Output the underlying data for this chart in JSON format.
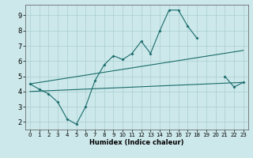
{
  "title": "",
  "xlabel": "Humidex (Indice chaleur)",
  "bg_color": "#cce8ea",
  "grid_color": "#aacdd0",
  "line_color": "#1a6b6b",
  "xlim": [
    -0.5,
    23.5
  ],
  "ylim": [
    1.5,
    9.7
  ],
  "xticks": [
    0,
    1,
    2,
    3,
    4,
    5,
    6,
    7,
    8,
    9,
    10,
    11,
    12,
    13,
    14,
    15,
    16,
    17,
    18,
    19,
    20,
    21,
    22,
    23
  ],
  "yticks": [
    2,
    3,
    4,
    5,
    6,
    7,
    8,
    9
  ],
  "series_spiky": {
    "x": [
      0,
      1,
      2,
      3,
      4,
      5,
      6,
      7,
      8,
      9,
      10,
      11,
      12,
      13,
      14,
      15,
      16,
      17,
      18,
      19,
      20,
      21,
      22,
      23
    ],
    "y": [
      4.5,
      4.15,
      3.85,
      3.3,
      2.2,
      1.85,
      3.0,
      4.7,
      5.75,
      6.35,
      6.1,
      6.5,
      7.3,
      6.5,
      8.0,
      9.35,
      9.35,
      8.3,
      7.5,
      null,
      null,
      5.0,
      4.3,
      4.6
    ]
  },
  "series_upper": {
    "x": [
      0,
      23
    ],
    "y": [
      4.5,
      6.7
    ]
  },
  "series_lower": {
    "x": [
      0,
      23
    ],
    "y": [
      4.0,
      4.6
    ]
  }
}
